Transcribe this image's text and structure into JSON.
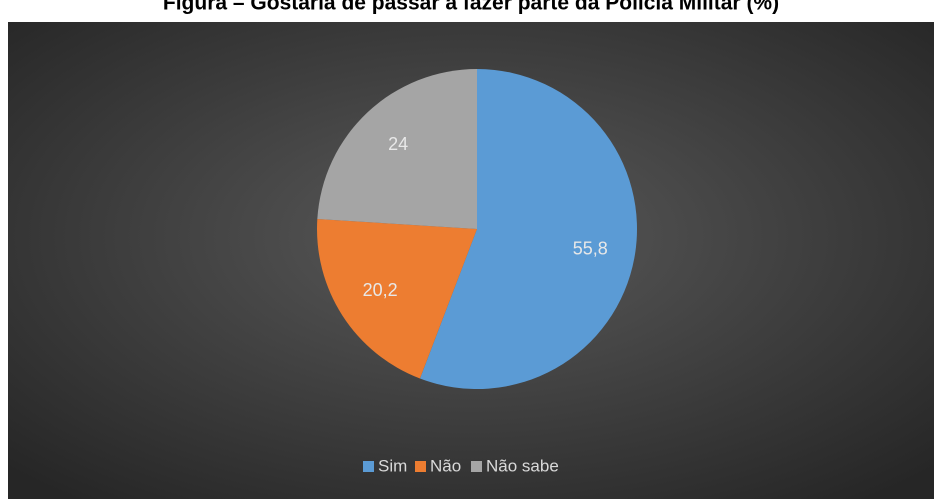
{
  "chart_data": {
    "type": "pie",
    "title": "Figura – Gostaria de passar a fazer parte da Polícia Militar (%)",
    "categories": [
      "Sim",
      "Não",
      "Não sabe"
    ],
    "values": [
      55.8,
      20.2,
      24
    ],
    "value_labels": [
      "55,8",
      "20,2",
      "24"
    ],
    "colors": [
      "#5b9bd5",
      "#ed7d31",
      "#a5a5a5"
    ],
    "legend": "bottom"
  }
}
